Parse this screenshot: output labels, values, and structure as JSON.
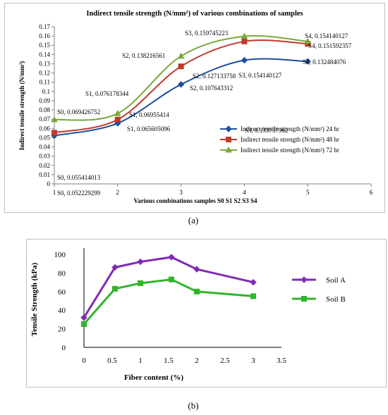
{
  "captions": {
    "a": "(a)",
    "b": "(b)"
  },
  "colors": {
    "blue": "#1f4e9c",
    "red": "#c0392b",
    "green": "#7aa83a",
    "purple": "#7f2bb5",
    "brightgreen": "#2fb52a",
    "axis": "#808080"
  },
  "chart_data": [
    {
      "type": "line",
      "title": "Indirect tensile strength  (N/mm²) of various combinations of samples",
      "xlabel": "Various combinations samples  S0 S1 S2 S3 S4",
      "ylabel": "Indirect tensile strength  (N/mm²)",
      "xlim": [
        1,
        6
      ],
      "ylim": [
        0,
        0.17
      ],
      "x_ticks": [
        "1",
        "2",
        "3",
        "4",
        "5",
        "6"
      ],
      "y_ticks": [
        "0",
        "0.01",
        "0.02",
        "0.03",
        "0.04",
        "0.05",
        "0.06",
        "0.07",
        "0.08",
        "0.09",
        "0.1",
        "0.11",
        "0.12",
        "0.13",
        "0.14",
        "0.15",
        "0.16",
        "0.17"
      ],
      "x": [
        1,
        2,
        3,
        4,
        5
      ],
      "legend_position": "right",
      "grid": false,
      "series": [
        {
          "name": "Indirect tensile strength  (N/mm²) 24 hr",
          "color": "#1f4e9c",
          "marker": "diamond",
          "values": [
            0.052229299,
            0.065605096,
            0.107643312,
            0.133757962,
            0.132484076
          ],
          "labels": [
            "S0, 0.052229299",
            "S1, 0.065605096",
            "S2, 0.107643312",
            "S3, 0.133757962",
            "S4, 0.132484076"
          ]
        },
        {
          "name": "Indirect tensile strength  (N/mm²) 48 hr",
          "color": "#c0392b",
          "marker": "square",
          "values": [
            0.055414013,
            0.06955414,
            0.127133758,
            0.154140127,
            0.151592357
          ],
          "labels": [
            "S0, 0.055414013",
            "S1, 0.06955414",
            "S2, 0.127133758",
            "S3, 0.154140127",
            "S4, 0.151592357"
          ]
        },
        {
          "name": "Indirect tensile strength  (N/mm²) 72 hr",
          "color": "#7aa83a",
          "marker": "triangle",
          "values": [
            0.069426752,
            0.076178344,
            0.138216561,
            0.159745223,
            0.154140127
          ],
          "labels": [
            "S0, 0.069426752",
            "S1, 0.076178344",
            "S2, 0.138216561",
            "S3, 0.159745223",
            "S4, 0.154140127"
          ]
        }
      ]
    },
    {
      "type": "line",
      "title": "",
      "xlabel": "Fiber content (%)",
      "ylabel": "Tensile Strength (kPa)",
      "xlim": [
        0,
        3.5
      ],
      "ylim": [
        0,
        100
      ],
      "x_ticks": [
        "0",
        "0.5",
        "1",
        "1.5",
        "2",
        "2.5",
        "3",
        "3.5"
      ],
      "y_ticks": [
        "0",
        "20",
        "40",
        "60",
        "80",
        "100"
      ],
      "legend_position": "right",
      "grid": false,
      "series": [
        {
          "name": "Soil A",
          "color": "#7f2bb5",
          "marker": "diamond",
          "x": [
            0,
            0.55,
            1.0,
            1.55,
            2.0,
            3.0
          ],
          "values": [
            32,
            86,
            92,
            97,
            84,
            70
          ]
        },
        {
          "name": "Soil B",
          "color": "#2fb52a",
          "marker": "square",
          "x": [
            0,
            0.55,
            1.0,
            1.55,
            2.0,
            3.0
          ],
          "values": [
            25,
            63,
            69,
            73,
            60,
            55
          ]
        }
      ]
    }
  ]
}
